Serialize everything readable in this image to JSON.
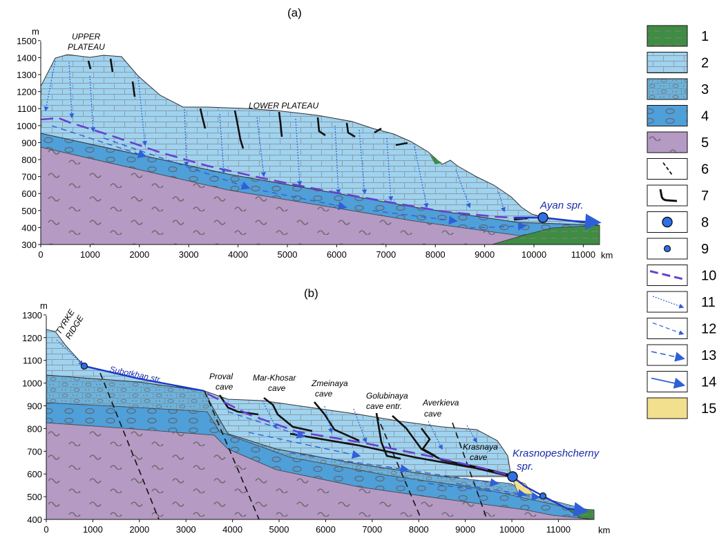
{
  "colors": {
    "limestone": "#9fd3ef",
    "sandy_limestone": "#6bb3dc",
    "sandstone_pebble": "#4f9fd9",
    "basement": "#b59ac3",
    "green": "#3f8c45",
    "yellow": "#f2e08e",
    "flow_blue": "#2f5fd8",
    "water_table": "#6a3ed0",
    "spring_text": "#1a2aa8"
  },
  "panel_a": {
    "label": "(a)",
    "y_unit": "m",
    "x_unit": "km",
    "y_ticks": [
      "300",
      "400",
      "500",
      "600",
      "700",
      "800",
      "900",
      "1000",
      "1100",
      "1200",
      "1300",
      "1400",
      "1500"
    ],
    "x_ticks": [
      "0",
      "1000",
      "2000",
      "3000",
      "4000",
      "5000",
      "6000",
      "7000",
      "8000",
      "9000",
      "10000",
      "11000"
    ],
    "upper_plateau": [
      "UPPER",
      "PLATEAU"
    ],
    "lower_plateau": "LOWER PLATEAU",
    "spring": "Ayan spr."
  },
  "panel_b": {
    "label": "(b)",
    "y_unit": "m",
    "x_unit": "km",
    "y_ticks": [
      "400",
      "500",
      "600",
      "700",
      "800",
      "900",
      "1000",
      "1100",
      "1200",
      "1300"
    ],
    "x_ticks": [
      "0",
      "1000",
      "2000",
      "3000",
      "4000",
      "5000",
      "6000",
      "7000",
      "8000",
      "9000",
      "10000",
      "11000"
    ],
    "ridge": [
      "TYRKE",
      "RIDGE"
    ],
    "stream": "Subotkhan str.",
    "caves": [
      {
        "name": "Proval",
        "sub": "cave"
      },
      {
        "name": "Mar-Khosar",
        "sub": "cave"
      },
      {
        "name": "Zmeinaya",
        "sub": "cave"
      },
      {
        "name": "Golubinaya",
        "sub": "cave entr."
      },
      {
        "name": "Averkieva",
        "sub": "cave"
      },
      {
        "name": "Krasnaya",
        "sub": "cave"
      }
    ],
    "spring": [
      "Krasnopeshcherny",
      "spr."
    ]
  },
  "legend": {
    "items": [
      "1",
      "2",
      "3",
      "4",
      "5",
      "6",
      "7",
      "8",
      "9",
      "10",
      "11",
      "12",
      "13",
      "14",
      "15"
    ]
  }
}
